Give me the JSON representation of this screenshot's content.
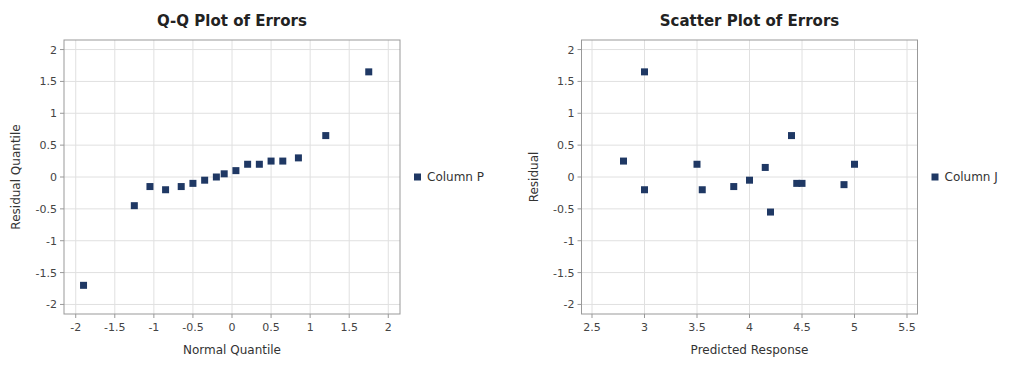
{
  "chart_data": [
    {
      "type": "scatter",
      "title": "Q-Q Plot of Errors",
      "x_label": "Normal Quantile",
      "y_label": "Residual Quantile",
      "series": [
        {
          "name": "Column P",
          "color": "#1F3864",
          "marker": "square",
          "x": [
            -1.9,
            -1.25,
            -1.05,
            -0.85,
            -0.65,
            -0.5,
            -0.35,
            -0.2,
            -0.1,
            0.05,
            0.2,
            0.35,
            0.5,
            0.65,
            0.85,
            1.2,
            1.75
          ],
          "values": [
            -1.7,
            -0.45,
            -0.15,
            -0.2,
            -0.15,
            -0.1,
            -0.05,
            0.0,
            0.05,
            0.1,
            0.2,
            0.2,
            0.25,
            0.25,
            0.3,
            0.65,
            1.65
          ]
        }
      ],
      "xlim": [
        -2.15,
        2.15
      ],
      "ylim": [
        -2.15,
        2.15
      ],
      "xticks": [
        -2,
        -1.5,
        -1,
        -0.5,
        0,
        0.5,
        1,
        1.5,
        2
      ],
      "yticks": [
        -2,
        -1.5,
        -1,
        -0.5,
        0,
        0.5,
        1,
        1.5,
        2
      ],
      "grid": true,
      "legend": "right"
    },
    {
      "type": "scatter",
      "title": "Scatter Plot of Errors",
      "x_label": "Predicted Response",
      "y_label": "Residual",
      "series": [
        {
          "name": "Column J",
          "color": "#1F3864",
          "marker": "square",
          "x": [
            2.8,
            3.0,
            3.0,
            3.5,
            3.55,
            3.85,
            4.0,
            4.15,
            4.2,
            4.4,
            4.45,
            4.5,
            4.9,
            5.0
          ],
          "values": [
            0.25,
            1.65,
            -0.2,
            0.2,
            -0.2,
            -0.15,
            -0.05,
            0.15,
            -0.55,
            0.65,
            -0.1,
            -0.1,
            -0.12,
            0.2
          ]
        }
      ],
      "xlim": [
        2.4,
        5.6
      ],
      "ylim": [
        -2.15,
        2.15
      ],
      "xticks": [
        2.5,
        3,
        3.5,
        4,
        4.5,
        5,
        5.5
      ],
      "yticks": [
        -2,
        -1.5,
        -1,
        -0.5,
        0,
        0.5,
        1,
        1.5,
        2
      ],
      "grid": true,
      "legend": "right"
    }
  ]
}
